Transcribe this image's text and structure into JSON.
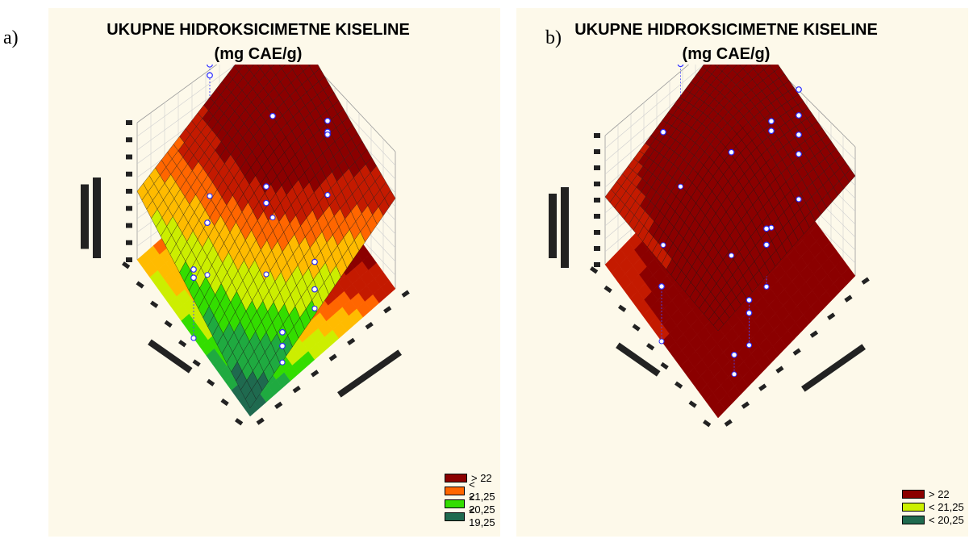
{
  "chart_data": [
    {
      "letter": "a)",
      "type": "surface",
      "title": "UKUPNE HIDROKSICIMETNE KISELINE",
      "subtitle": "(mg CAE/g)",
      "legend": [
        {
          "label": "> 22",
          "color": "#8b0000"
        },
        {
          "label": "< 21,25",
          "color": "#ff6600"
        },
        {
          "label": "< 20,25",
          "color": "#33dd00"
        },
        {
          "label": "< 19,25",
          "color": "#1f6a4f"
        }
      ],
      "zlim": [
        18.5,
        23.5
      ],
      "surface": {
        "corner_left": 21.0,
        "corner_back": 23.2,
        "corner_right": 21.8,
        "corner_front": 18.8
      },
      "points": [
        {
          "u": 0.0,
          "v": 0.5,
          "z": 21.0
        },
        {
          "u": 0.0,
          "v": 0.5,
          "z": 20.7
        },
        {
          "u": 0.25,
          "v": 0.7,
          "z": 20.4
        },
        {
          "u": 0.5,
          "v": 1.0,
          "z": 23.3
        },
        {
          "u": 0.5,
          "v": 1.0,
          "z": 22.9
        },
        {
          "u": 0.7,
          "v": 0.7,
          "z": 22.2
        },
        {
          "u": 0.5,
          "v": 0.5,
          "z": 21.7
        },
        {
          "u": 0.5,
          "v": 0.5,
          "z": 21.1
        },
        {
          "u": 1.0,
          "v": 0.6,
          "z": 21.2
        },
        {
          "u": 1.0,
          "v": 0.6,
          "z": 20.8
        },
        {
          "u": 1.0,
          "v": 0.6,
          "z": 20.7
        },
        {
          "u": 0.6,
          "v": 0.2,
          "z": 20.2
        },
        {
          "u": 0.3,
          "v": 0.1,
          "z": 19.6
        },
        {
          "u": 0.3,
          "v": 0.1,
          "z": 19.1
        },
        {
          "u": 0.6,
          "v": 0.2,
          "z": 19.2
        }
      ]
    },
    {
      "letter": "b)",
      "type": "surface",
      "title": "UKUPNE HIDROKSICIMETNE KISELINE",
      "subtitle": "(mg CAE/g)",
      "legend": [
        {
          "label": "> 22",
          "color": "#8b0000"
        },
        {
          "label": "< 21,25",
          "color": "#ccf000"
        },
        {
          "label": "< 20,25",
          "color": "#1f6a4f"
        }
      ],
      "zlim": [
        19.5,
        23.5
      ],
      "surface": {
        "corner_left": 21.6,
        "corner_back": 22.9,
        "corner_right": 22.6,
        "corner_front": 22.2
      },
      "points": [
        {
          "u": 0.0,
          "v": 0.5,
          "z": 21.2
        },
        {
          "u": 0.3,
          "v": 0.85,
          "z": 23.0
        },
        {
          "u": 0.55,
          "v": 1.0,
          "z": 23.3
        },
        {
          "u": 0.55,
          "v": 0.55,
          "z": 22.7
        },
        {
          "u": 0.8,
          "v": 0.5,
          "z": 22.8
        },
        {
          "u": 0.8,
          "v": 0.5,
          "z": 22.5
        },
        {
          "u": 1.0,
          "v": 0.5,
          "z": 22.9
        },
        {
          "u": 1.0,
          "v": 0.5,
          "z": 22.1
        },
        {
          "u": 1.0,
          "v": 0.5,
          "z": 21.5
        },
        {
          "u": 1.0,
          "v": 0.5,
          "z": 20.9
        },
        {
          "u": 0.6,
          "v": 0.3,
          "z": 21.3
        },
        {
          "u": 0.6,
          "v": 0.3,
          "z": 20.8
        },
        {
          "u": 0.35,
          "v": 0.15,
          "z": 20.9
        },
        {
          "u": 0.35,
          "v": 0.15,
          "z": 20.5
        },
        {
          "u": 0.2,
          "v": 0.1,
          "z": 20.1
        }
      ]
    }
  ]
}
